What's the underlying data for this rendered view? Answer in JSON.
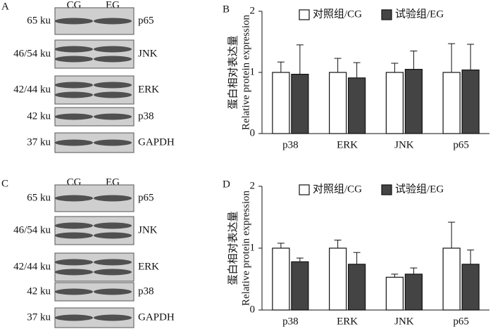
{
  "panels": [
    {
      "label": "A",
      "columns": [
        "CG",
        "EG"
      ],
      "rows": [
        {
          "size": "65 ku",
          "protein": "p65"
        },
        {
          "size": "46/54 ku",
          "protein": "JNK"
        },
        {
          "size": "42/44 ku",
          "protein": "ERK"
        },
        {
          "size": "42 ku",
          "protein": "p38"
        },
        {
          "size": "37 ku",
          "protein": "GAPDH"
        }
      ]
    },
    {
      "label": "C",
      "columns": [
        "CG",
        "EG"
      ],
      "rows": [
        {
          "size": "65 ku",
          "protein": "p65"
        },
        {
          "size": "46/54 ku",
          "protein": "JNK"
        },
        {
          "size": "42/44 ku",
          "protein": "ERK"
        },
        {
          "size": "42 ku",
          "protein": "p38"
        },
        {
          "size": "37 ku",
          "protein": "GAPDH"
        }
      ]
    }
  ],
  "chart_data": [
    {
      "type": "bar",
      "panel_label": "B",
      "ylabel": [
        "蛋白相对表达量",
        "Relative protein expression"
      ],
      "categories": [
        "p38",
        "ERK",
        "JNK",
        "p65"
      ],
      "series": [
        {
          "name": "对照组/CG",
          "color": "#ffffff",
          "values": [
            1.0,
            1.0,
            1.0,
            1.0
          ],
          "errors": [
            0.17,
            0.23,
            0.15,
            0.47
          ]
        },
        {
          "name": "试验组/EG",
          "color": "#444444",
          "values": [
            0.97,
            0.91,
            1.05,
            1.04
          ],
          "errors": [
            0.48,
            0.25,
            0.3,
            0.42
          ]
        }
      ],
      "ylim": [
        0,
        2
      ],
      "yticks": [
        0,
        1,
        2
      ],
      "legend": "upper right"
    },
    {
      "type": "bar",
      "panel_label": "D",
      "ylabel": [
        "蛋白相对表达量",
        "Relative protein expression"
      ],
      "categories": [
        "p38",
        "ERK",
        "JNK",
        "p65"
      ],
      "series": [
        {
          "name": "对照组/CG",
          "color": "#ffffff",
          "values": [
            1.0,
            1.0,
            0.53,
            1.0
          ],
          "errors": [
            0.08,
            0.13,
            0.05,
            0.42
          ]
        },
        {
          "name": "试验组/EG",
          "color": "#444444",
          "values": [
            0.78,
            0.74,
            0.58,
            0.74
          ],
          "errors": [
            0.06,
            0.19,
            0.1,
            0.23
          ]
        }
      ],
      "ylim": [
        0,
        2
      ],
      "yticks": [
        0,
        1,
        2
      ],
      "legend": "upper right"
    }
  ]
}
